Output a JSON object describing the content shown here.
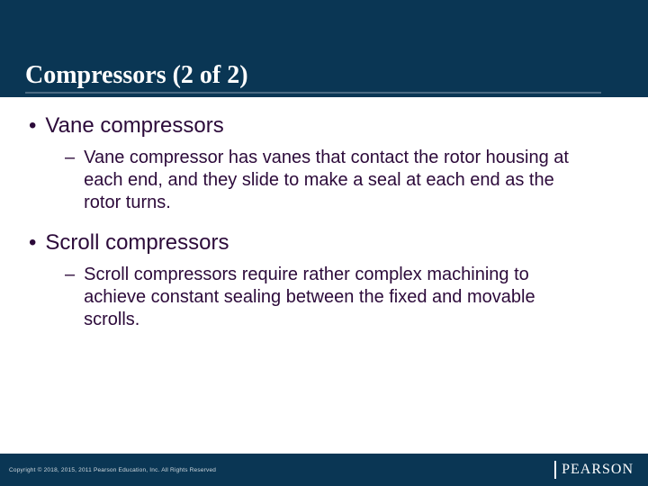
{
  "colors": {
    "header_bg": "#0a3654",
    "footer_bg": "#0a3654",
    "body_bg": "#ffffff",
    "text_color": "#2c0a3a",
    "title_color": "#ffffff",
    "underline_color": "#4a6a82",
    "copyright_color": "#cfd8de",
    "logo_color": "#ffffff"
  },
  "typography": {
    "title_font": "Georgia, serif",
    "title_size_pt": 28,
    "title_weight": "bold",
    "bullet1_size_pt": 24,
    "bullet2_size_pt": 20,
    "copyright_size_pt": 6.5,
    "logo_size_pt": 16
  },
  "title": "Compressors (2 of 2)",
  "bullets": [
    {
      "label": "Vane compressors",
      "sub": [
        "Vane compressor has vanes that contact the rotor housing at each end, and they slide to make a seal at each end as the rotor turns."
      ]
    },
    {
      "label": "Scroll compressors",
      "sub": [
        "Scroll compressors require rather complex machining to achieve constant sealing between the fixed and movable scrolls."
      ]
    }
  ],
  "footer": {
    "copyright": "Copyright © 2018, 2015, 2011 Pearson Education, Inc. All Rights Reserved",
    "logo_text": "PEARSON"
  }
}
